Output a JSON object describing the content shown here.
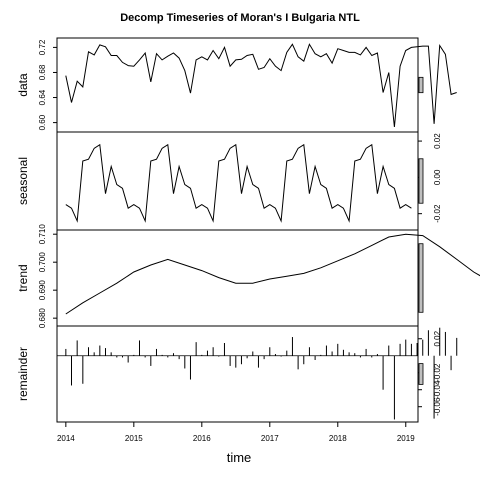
{
  "chart_data": {
    "type": "line",
    "title": "Decomp Timeseries of Moran's I Bulgaria NTL",
    "xlabel": "time",
    "x_ticks": [
      "2014",
      "2015",
      "2016",
      "2017",
      "2018",
      "2019"
    ],
    "panels": [
      {
        "ylabel": "data",
        "ylim": [
          0.585,
          0.735
        ],
        "ticks": [
          "0.60",
          "0.64",
          "0.68",
          "0.72"
        ],
        "tick_side": "left",
        "style": "line",
        "start": 2014.0,
        "step": 0.08333,
        "values": [
          0.675,
          0.632,
          0.666,
          0.657,
          0.713,
          0.708,
          0.724,
          0.721,
          0.707,
          0.707,
          0.696,
          0.691,
          0.69,
          0.7,
          0.711,
          0.665,
          0.71,
          0.7,
          0.706,
          0.711,
          0.703,
          0.683,
          0.647,
          0.7,
          0.705,
          0.7,
          0.715,
          0.702,
          0.72,
          0.69,
          0.7,
          0.701,
          0.707,
          0.709,
          0.685,
          0.688,
          0.702,
          0.69,
          0.683,
          0.712,
          0.725,
          0.705,
          0.698,
          0.725,
          0.71,
          0.705,
          0.71,
          0.695,
          0.718,
          0.715,
          0.712,
          0.712,
          0.708,
          0.72,
          0.707,
          0.711,
          0.648,
          0.68,
          0.593,
          0.69,
          0.715,
          0.72,
          0.721,
          0.722,
          0.722,
          0.598,
          0.723,
          0.709,
          0.645,
          0.648
        ]
      },
      {
        "ylabel": "seasonal",
        "ylim": [
          -0.029,
          0.025
        ],
        "ticks": [
          "-0.02",
          "0.00",
          "0.02"
        ],
        "tick_side": "right",
        "style": "line",
        "start": 2014.0,
        "step": 0.08333,
        "values": [
          -0.015,
          -0.017,
          -0.024,
          0.009,
          0.01,
          0.016,
          0.018,
          -0.009,
          0.006,
          -0.004,
          -0.006,
          -0.017
        ]
      },
      {
        "ylabel": "trend",
        "ylim": [
          0.6772,
          0.7115
        ],
        "ticks": [
          "0.680",
          "0.690",
          "0.700",
          "0.710"
        ],
        "tick_side": "left",
        "style": "line",
        "start": 2014.0,
        "step": 0.25,
        "values": [
          0.6815,
          0.6855,
          0.689,
          0.6925,
          0.6965,
          0.699,
          0.701,
          0.699,
          0.697,
          0.6945,
          0.6925,
          0.6925,
          0.694,
          0.695,
          0.696,
          0.698,
          0.7005,
          0.703,
          0.706,
          0.709,
          0.71,
          0.7095,
          0.7055,
          0.701,
          0.6965,
          0.693,
          0.689,
          0.6855,
          0.6825,
          0.6795,
          0.6775
        ]
      },
      {
        "ylabel": "remainder",
        "ylim": [
          -0.078,
          0.035
        ],
        "ticks": [
          "-0.06",
          "-0.04",
          "-0.02",
          "0.02"
        ],
        "tick_side": "right",
        "style": "bars",
        "start": 2014.0,
        "step": 0.08333,
        "values": [
          0.008,
          -0.035,
          0.018,
          -0.033,
          0.01,
          0.004,
          0.012,
          0.009,
          0.004,
          -0.002,
          -0.002,
          -0.008,
          0.001,
          0.018,
          -0.002,
          -0.012,
          0.008,
          0.001,
          -0.002,
          0.003,
          -0.004,
          -0.015,
          -0.028,
          0.016,
          0.001,
          0.006,
          0.01,
          -0.001,
          0.015,
          -0.012,
          -0.014,
          -0.01,
          -0.003,
          0.005,
          -0.014,
          -0.004,
          0.01,
          0.002,
          -0.001,
          0.006,
          0.022,
          -0.016,
          -0.01,
          0.01,
          -0.005,
          0.001,
          0.012,
          0.005,
          0.014,
          0.007,
          0.004,
          0.003,
          -0.002,
          0.008,
          -0.002,
          0.002,
          -0.04,
          0.012,
          -0.075,
          0.014,
          0.019,
          0.014,
          0.015,
          0.019,
          0.03,
          -0.074,
          0.033,
          0.028,
          -0.017,
          0.021
        ]
      }
    ],
    "scale_bars": true,
    "grid": false,
    "legend": "none"
  }
}
